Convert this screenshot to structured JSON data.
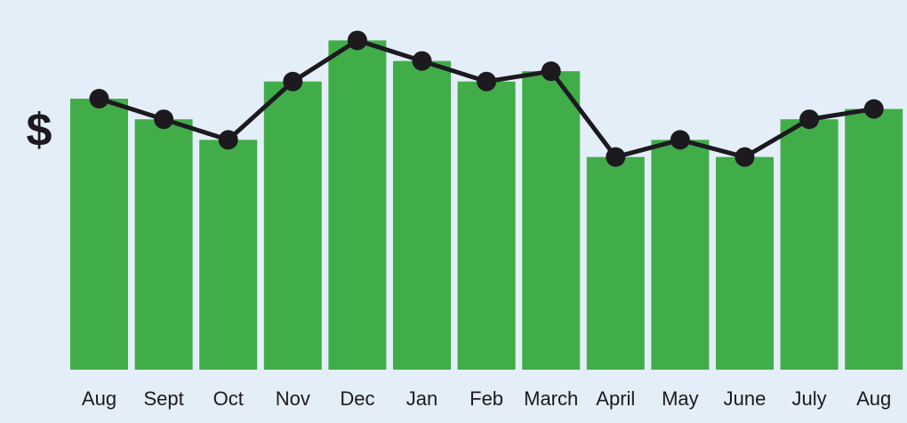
{
  "chart_data": {
    "type": "bar",
    "y_label": "$",
    "categories": [
      "Aug",
      "Sept",
      "Oct",
      "Nov",
      "Dec",
      "Jan",
      "Feb",
      "March",
      "April",
      "May",
      "June",
      "July",
      "Aug"
    ],
    "series": [
      {
        "type": "bar",
        "color": "#41ad49",
        "values": [
          79,
          73,
          67,
          84,
          96,
          90,
          84,
          87,
          62,
          67,
          62,
          73,
          76
        ]
      },
      {
        "type": "line",
        "color": "#1c1a1f",
        "values": [
          79,
          73,
          67,
          84,
          96,
          90,
          84,
          87,
          62,
          67,
          62,
          73,
          76
        ]
      }
    ],
    "ylim": [
      0,
      100
    ]
  }
}
